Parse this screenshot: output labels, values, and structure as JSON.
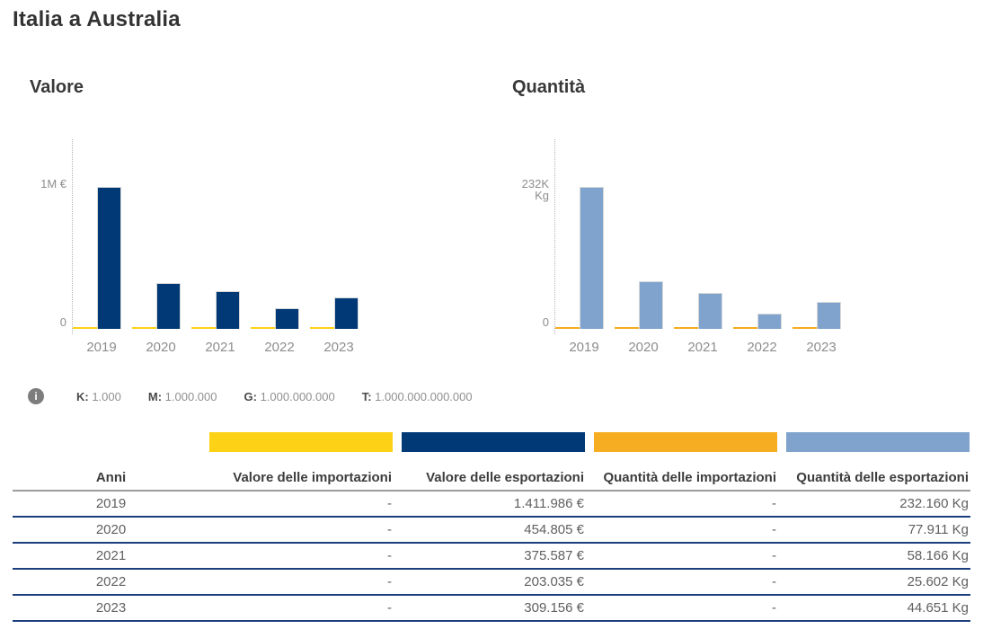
{
  "page": {
    "title": "Italia a Australia"
  },
  "chart_data": [
    {
      "type": "bar",
      "title": "Valore",
      "categories": [
        "2019",
        "2020",
        "2021",
        "2022",
        "2023"
      ],
      "series": [
        {
          "name": "Valore delle importazioni",
          "key": "valore-importazioni",
          "color": "#fdd216",
          "values": [
            null,
            null,
            null,
            null,
            null
          ]
        },
        {
          "name": "Valore delle esportazioni",
          "key": "valore-esportazioni",
          "color": "#003976",
          "values": [
            1411986,
            454805,
            375587,
            203035,
            309156
          ]
        }
      ],
      "unit": "€",
      "ylim": [
        0,
        1411986
      ],
      "yticks": [
        {
          "value": 0,
          "label": "0"
        },
        {
          "value": 1411986,
          "label": "1M €"
        }
      ],
      "grid": false,
      "legend_position": "below-table"
    },
    {
      "type": "bar",
      "title": "Quantità",
      "categories": [
        "2019",
        "2020",
        "2021",
        "2022",
        "2023"
      ],
      "series": [
        {
          "name": "Quantità delle importazioni",
          "key": "quantita-importazioni",
          "color": "#f6ad21",
          "values": [
            null,
            null,
            null,
            null,
            null
          ]
        },
        {
          "name": "Quantità delle esportazioni",
          "key": "quantita-esportazioni",
          "color": "#7fa3cd",
          "values": [
            232160,
            77911,
            58166,
            25602,
            44651
          ]
        }
      ],
      "unit": "Kg",
      "ylim": [
        0,
        232160
      ],
      "yticks": [
        {
          "value": 0,
          "label": "0"
        },
        {
          "value": 232160,
          "label": "232K Kg"
        }
      ],
      "grid": false,
      "legend_position": "below-table"
    }
  ],
  "info_legend": {
    "icon_glyph": "i",
    "items": [
      {
        "label": "K:",
        "value": "1.000"
      },
      {
        "label": "M:",
        "value": "1.000.000"
      },
      {
        "label": "G:",
        "value": "1.000.000.000"
      },
      {
        "label": "T:",
        "value": "1.000.000.000.000"
      }
    ]
  },
  "table": {
    "headers": [
      "Anni",
      "Valore delle importazioni",
      "Valore delle esportazioni",
      "Quantità delle importazioni",
      "Quantità delle esportazioni"
    ],
    "rows": [
      [
        "2019",
        "-",
        "1.411.986 €",
        "-",
        "232.160 Kg"
      ],
      [
        "2020",
        "-",
        "454.805 €",
        "-",
        "77.911 Kg"
      ],
      [
        "2021",
        "-",
        "375.587 €",
        "-",
        "58.166 Kg"
      ],
      [
        "2022",
        "-",
        "203.035 €",
        "-",
        "25.602 Kg"
      ],
      [
        "2023",
        "-",
        "309.156 €",
        "-",
        "44.651 Kg"
      ]
    ]
  },
  "colors": {
    "valore_importazioni": "#fdd216",
    "valore_esportazioni": "#003976",
    "quantita_importazioni": "#f6ad21",
    "quantita_esportazioni": "#7fa3cd",
    "row_separator": "#1b3e7c",
    "header_separator": "#9c9c9c"
  }
}
